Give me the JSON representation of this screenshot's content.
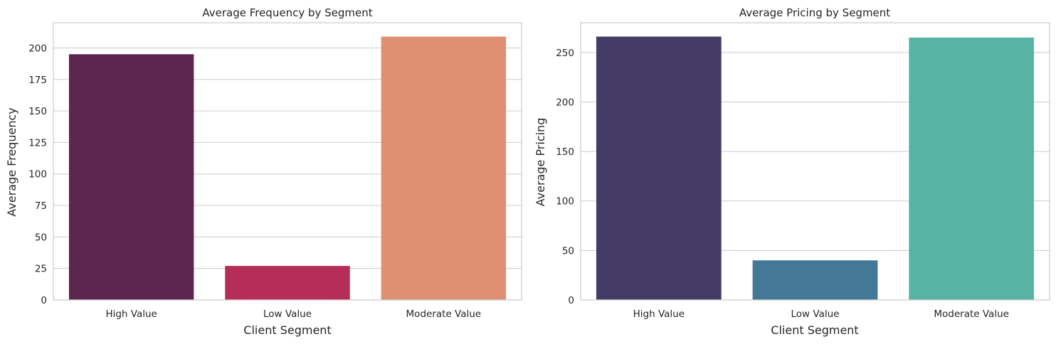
{
  "chart_data": [
    {
      "type": "bar",
      "title": "Average Frequency by Segment",
      "xlabel": "Client Segment",
      "ylabel": "Average Frequency",
      "categories": [
        "High Value",
        "Low Value",
        "Moderate Value"
      ],
      "values": [
        195,
        27,
        209
      ],
      "colors": [
        "#5c2650",
        "#b52e58",
        "#e09072"
      ],
      "ylim": [
        0,
        220
      ],
      "yticks": [
        0,
        25,
        50,
        75,
        100,
        125,
        150,
        175,
        200
      ],
      "grid": true,
      "legend": "none"
    },
    {
      "type": "bar",
      "title": "Average Pricing by Segment",
      "xlabel": "Client Segment",
      "ylabel": "Average Pricing",
      "categories": [
        "High Value",
        "Low Value",
        "Moderate Value"
      ],
      "values": [
        266,
        40,
        265
      ],
      "colors": [
        "#443c66",
        "#447897",
        "#57b3a2"
      ],
      "ylim": [
        0,
        280
      ],
      "yticks": [
        0,
        50,
        100,
        150,
        200,
        250
      ],
      "grid": true,
      "legend": "none"
    }
  ]
}
